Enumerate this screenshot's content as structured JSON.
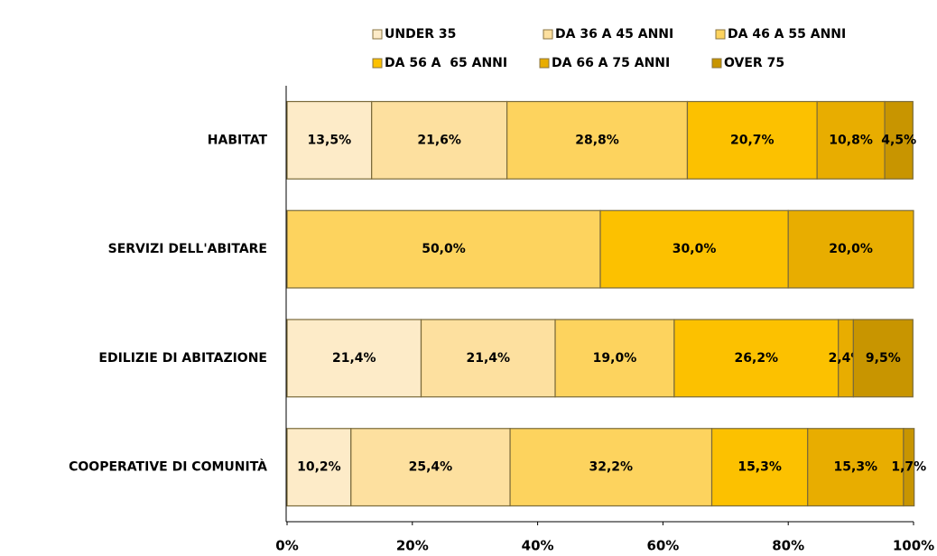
{
  "chart_data": {
    "type": "stacked-bar-horizontal",
    "categories": [
      "HABITAT",
      "SERVIZI DELL'ABITARE",
      "EDILIZIE DI ABITAZIONE",
      "COOPERATIVE DI COMUNITÀ"
    ],
    "series": [
      {
        "name": "UNDER 35",
        "color": "#fdebc8",
        "values": [
          13.5,
          0,
          21.4,
          10.2
        ],
        "value_labels": [
          "13,5%",
          null,
          "21,4%",
          "10,2%"
        ]
      },
      {
        "name": "DA 36 A 45 ANNI",
        "color": "#fde09f",
        "values": [
          21.6,
          0,
          21.4,
          25.4
        ],
        "value_labels": [
          "21,6%",
          null,
          "21,4%",
          "25,4%"
        ]
      },
      {
        "name": "DA 46 A 55 ANNI",
        "color": "#fdd35e",
        "values": [
          28.8,
          50.0,
          19.0,
          32.2
        ],
        "value_labels": [
          "28,8%",
          "50,0%",
          "19,0%",
          "32,2%"
        ]
      },
      {
        "name": "DA 56 A  65 ANNI",
        "color": "#fcc100",
        "values": [
          20.7,
          30.0,
          26.2,
          15.3
        ],
        "value_labels": [
          "20,7%",
          "30,0%",
          "26,2%",
          "15,3%"
        ]
      },
      {
        "name": "DA 66 A 75 ANNI",
        "color": "#e8ad00",
        "values": [
          10.8,
          20.0,
          2.4,
          15.3
        ],
        "value_labels": [
          "10,8%",
          "20,0%",
          "2,4%",
          "15,3%"
        ]
      },
      {
        "name": "OVER 75",
        "color": "#c89500",
        "values": [
          4.5,
          0,
          9.5,
          1.7
        ],
        "value_labels": [
          "4,5%",
          null,
          "9,5%",
          "1,7%"
        ]
      }
    ],
    "xlim": [
      0,
      100
    ],
    "xticks": [
      {
        "value": 0,
        "label": "0%"
      },
      {
        "value": 20,
        "label": "20%"
      },
      {
        "value": 40,
        "label": "40%"
      },
      {
        "value": 60,
        "label": "60%"
      },
      {
        "value": 80,
        "label": "80%"
      },
      {
        "value": 100,
        "label": "100%"
      }
    ]
  }
}
